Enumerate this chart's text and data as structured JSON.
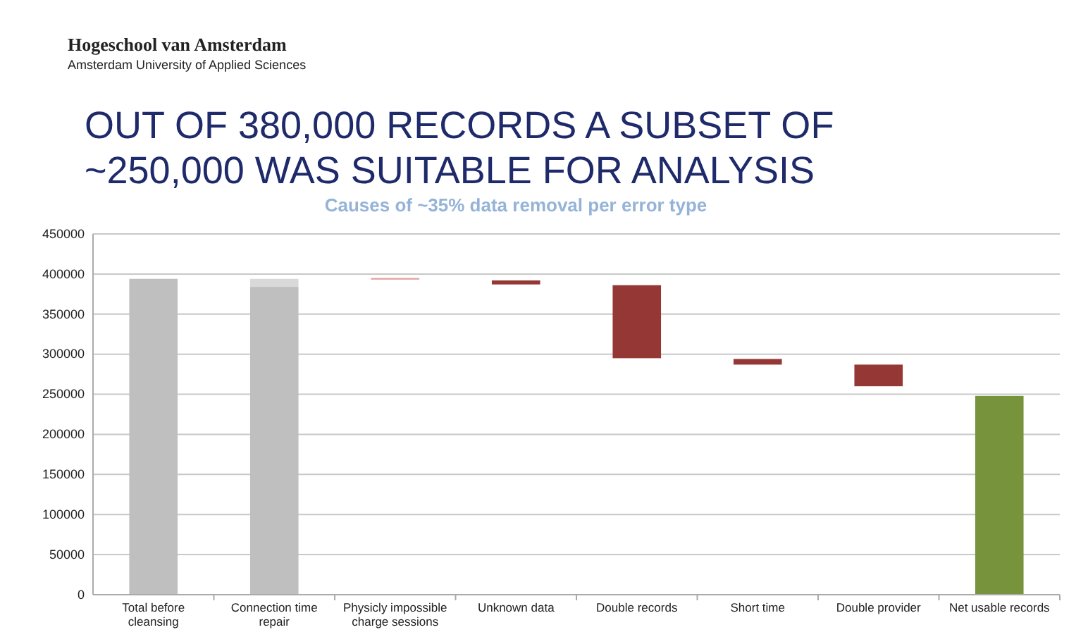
{
  "chart_data": {
    "type": "bar",
    "title": "OUT OF 380,000 RECORDS A SUBSET OF ~250,000 WAS SUITABLE FOR ANALYSIS",
    "subtitle": "Causes of ~35% data removal per error type",
    "annotations": [
      "Hogeschool van Amsterdam",
      "Amsterdam University of Applied Sciences"
    ],
    "categories": [
      "Total before cleansing",
      "Connection time repair",
      "Physicly impossible charge sessions",
      "Unknown data",
      "Double records",
      "Short time",
      "Double provider",
      "Net usable records"
    ],
    "series": [
      {
        "color": "#bfbfbf",
        "values": [
          394000,
          384000,
          null,
          null,
          null,
          null,
          null,
          null
        ],
        "base": [
          0,
          0,
          null,
          null,
          null,
          null,
          null,
          null
        ]
      },
      {
        "color": "#d9d9d9",
        "values": [
          null,
          10000,
          null,
          null,
          null,
          null,
          null,
          null
        ],
        "base": [
          null,
          384000,
          null,
          null,
          null,
          null,
          null,
          null
        ]
      },
      {
        "color": "#953735",
        "colors": [
          null,
          null,
          "#e6a0a0",
          null,
          null,
          null,
          null,
          null
        ],
        "values": [
          null,
          null,
          2000,
          5000,
          91000,
          7000,
          27000,
          null
        ],
        "base": [
          null,
          null,
          393000,
          387000,
          295000,
          287000,
          260000,
          null
        ]
      },
      {
        "color": "#77933c",
        "values": [
          null,
          null,
          null,
          null,
          null,
          null,
          null,
          248000
        ],
        "base": [
          null,
          null,
          null,
          null,
          null,
          null,
          null,
          0
        ]
      }
    ],
    "ylim": [
      0,
      450000
    ],
    "yticks": [
      0,
      50000,
      100000,
      150000,
      200000,
      250000,
      300000,
      350000,
      400000,
      450000
    ],
    "grid": "y"
  }
}
